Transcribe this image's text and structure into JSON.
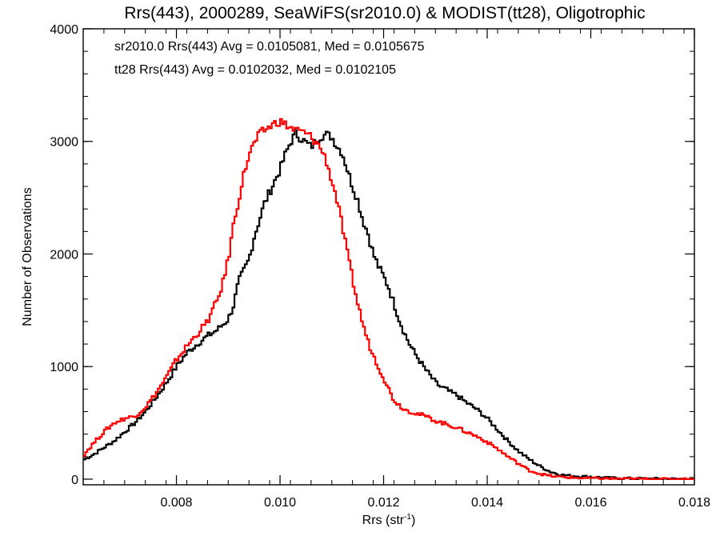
{
  "chart_data": {
    "type": "line",
    "title": "Rrs(443), 2000289, SeaWiFS(sr2010.0) & MODIST(tt28), Oligotrophic",
    "xlabel": "Rrs (str",
    "xlabel_sup": "-1",
    "xlabel_close": ")",
    "ylabel": "Number of Observations",
    "xlim": [
      0.0062,
      0.018
    ],
    "ylim": [
      -50,
      4000
    ],
    "xticks": [
      0.008,
      0.01,
      0.012,
      0.014,
      0.016,
      0.018
    ],
    "xtick_labels": [
      "0.008",
      "0.010",
      "0.012",
      "0.014",
      "0.016",
      "0.018"
    ],
    "yticks": [
      0,
      1000,
      2000,
      3000,
      4000
    ],
    "ytick_labels": [
      "0",
      "1000",
      "2000",
      "3000",
      "4000"
    ],
    "annotations": [
      {
        "text": "sr2010.0 Rrs(443) Avg = 0.0105081, Med = 0.0105675",
        "color": "#000000"
      },
      {
        "text": "tt28 Rrs(443) Avg = 0.0102032, Med = 0.0102105",
        "color": "#ff0000"
      }
    ],
    "series": [
      {
        "color": "#000000",
        "x": [
          0.0062,
          0.0064,
          0.0066,
          0.0068,
          0.007,
          0.0072,
          0.0074,
          0.0076,
          0.0078,
          0.008,
          0.0082,
          0.0084,
          0.0086,
          0.0088,
          0.009,
          0.0091,
          0.0092,
          0.0093,
          0.0094,
          0.0095,
          0.0096,
          0.0097,
          0.0098,
          0.0099,
          0.01,
          0.0101,
          0.0102,
          0.0103,
          0.0104,
          0.0105,
          0.0106,
          0.0107,
          0.0108,
          0.0109,
          0.011,
          0.0111,
          0.0112,
          0.0113,
          0.0114,
          0.0115,
          0.0116,
          0.0117,
          0.0118,
          0.0119,
          0.012,
          0.0121,
          0.0122,
          0.0123,
          0.0124,
          0.0125,
          0.0126,
          0.0127,
          0.0128,
          0.0129,
          0.013,
          0.0131,
          0.0132,
          0.0133,
          0.0134,
          0.0136,
          0.0138,
          0.014,
          0.0142,
          0.0144,
          0.0146,
          0.0148,
          0.015,
          0.0152,
          0.0154,
          0.0156,
          0.0158,
          0.016,
          0.0162,
          0.0164,
          0.0166,
          0.0168,
          0.017,
          0.0172,
          0.0174,
          0.0176,
          0.0178,
          0.018
        ],
        "y": [
          170,
          220,
          280,
          340,
          420,
          500,
          600,
          720,
          850,
          1000,
          1120,
          1200,
          1270,
          1330,
          1420,
          1540,
          1750,
          1850,
          1950,
          2150,
          2300,
          2450,
          2550,
          2650,
          2750,
          2880,
          2990,
          3070,
          3030,
          2990,
          2950,
          3010,
          3050,
          3060,
          3040,
          2960,
          2900,
          2750,
          2600,
          2480,
          2300,
          2180,
          2000,
          1890,
          1800,
          1700,
          1560,
          1420,
          1300,
          1200,
          1120,
          1050,
          980,
          920,
          860,
          820,
          800,
          770,
          750,
          680,
          620,
          540,
          440,
          340,
          250,
          180,
          120,
          70,
          40,
          30,
          25,
          20,
          15,
          10,
          8,
          6,
          5,
          4,
          3,
          2,
          2,
          2
        ]
      },
      {
        "color": "#ff0000",
        "x": [
          0.0062,
          0.0064,
          0.0066,
          0.0068,
          0.007,
          0.0072,
          0.0074,
          0.0076,
          0.0078,
          0.008,
          0.0082,
          0.0084,
          0.0086,
          0.0088,
          0.0089,
          0.009,
          0.0091,
          0.0092,
          0.0093,
          0.0094,
          0.0095,
          0.0096,
          0.0097,
          0.0098,
          0.0099,
          0.01,
          0.0101,
          0.0102,
          0.0103,
          0.0104,
          0.0105,
          0.0106,
          0.0107,
          0.0108,
          0.0109,
          0.011,
          0.0111,
          0.0112,
          0.0113,
          0.0114,
          0.0115,
          0.0116,
          0.0117,
          0.0118,
          0.0119,
          0.012,
          0.0121,
          0.0122,
          0.0124,
          0.0126,
          0.0128,
          0.013,
          0.0132,
          0.0134,
          0.0136,
          0.0138,
          0.014,
          0.0142,
          0.0144,
          0.0146,
          0.0148,
          0.015,
          0.0152,
          0.0154,
          0.0156,
          0.0158,
          0.016,
          0.0162,
          0.0164,
          0.0166,
          0.0168,
          0.017,
          0.0172,
          0.0174,
          0.0176,
          0.0178,
          0.018
        ],
        "y": [
          210,
          320,
          420,
          500,
          540,
          560,
          640,
          760,
          900,
          1060,
          1180,
          1290,
          1400,
          1600,
          1750,
          1950,
          2250,
          2480,
          2700,
          2880,
          2980,
          3060,
          3100,
          3130,
          3160,
          3180,
          3150,
          3120,
          3100,
          3090,
          3070,
          3040,
          2990,
          2930,
          2820,
          2650,
          2480,
          2250,
          2000,
          1780,
          1560,
          1380,
          1220,
          1100,
          1000,
          900,
          800,
          700,
          620,
          590,
          560,
          520,
          490,
          460,
          420,
          380,
          330,
          270,
          200,
          140,
          80,
          50,
          30,
          20,
          15,
          10,
          8,
          6,
          5,
          4,
          3,
          2,
          2,
          1,
          1,
          1,
          1
        ]
      }
    ]
  }
}
